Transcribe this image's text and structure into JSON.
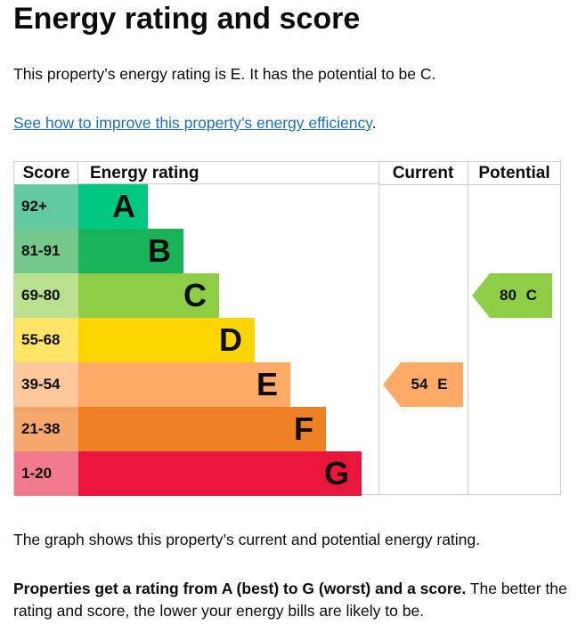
{
  "title": "Energy rating and score",
  "intro": "This property’s energy rating is E. It has the potential to be C.",
  "link": "See how to improve this property’s energy efficiency",
  "link_suffix": ".",
  "chart_data": {
    "type": "bar",
    "headers": {
      "score": "Score",
      "rating": "Energy rating",
      "current": "Current",
      "potential": "Potential"
    },
    "bands": [
      {
        "score": "92+",
        "letter": "A",
        "color": "#00c781",
        "light": "#63c9a0"
      },
      {
        "score": "81-91",
        "letter": "B",
        "color": "#19b459",
        "light": "#74c98a"
      },
      {
        "score": "69-80",
        "letter": "C",
        "color": "#8dce46",
        "light": "#b9e08c"
      },
      {
        "score": "55-68",
        "letter": "D",
        "color": "#ffd500",
        "light": "#ffe466"
      },
      {
        "score": "39-54",
        "letter": "E",
        "color": "#fcaa65",
        "light": "#fcc79a"
      },
      {
        "score": "21-38",
        "letter": "F",
        "color": "#ef8023",
        "light": "#f4a66b"
      },
      {
        "score": "1-20",
        "letter": "G",
        "color": "#e9153b",
        "light": "#f27a8d"
      }
    ],
    "current": {
      "value": 54,
      "letter": "E",
      "label": "54 E"
    },
    "potential": {
      "value": 80,
      "letter": "C",
      "label": "80 C"
    }
  },
  "caption": "The graph shows this property’s current and potential energy rating.",
  "note_bold": "Properties get a rating from A (best) to G (worst) and a score.",
  "note_rest": " The better the rating and score, the lower your energy bills are likely to be."
}
